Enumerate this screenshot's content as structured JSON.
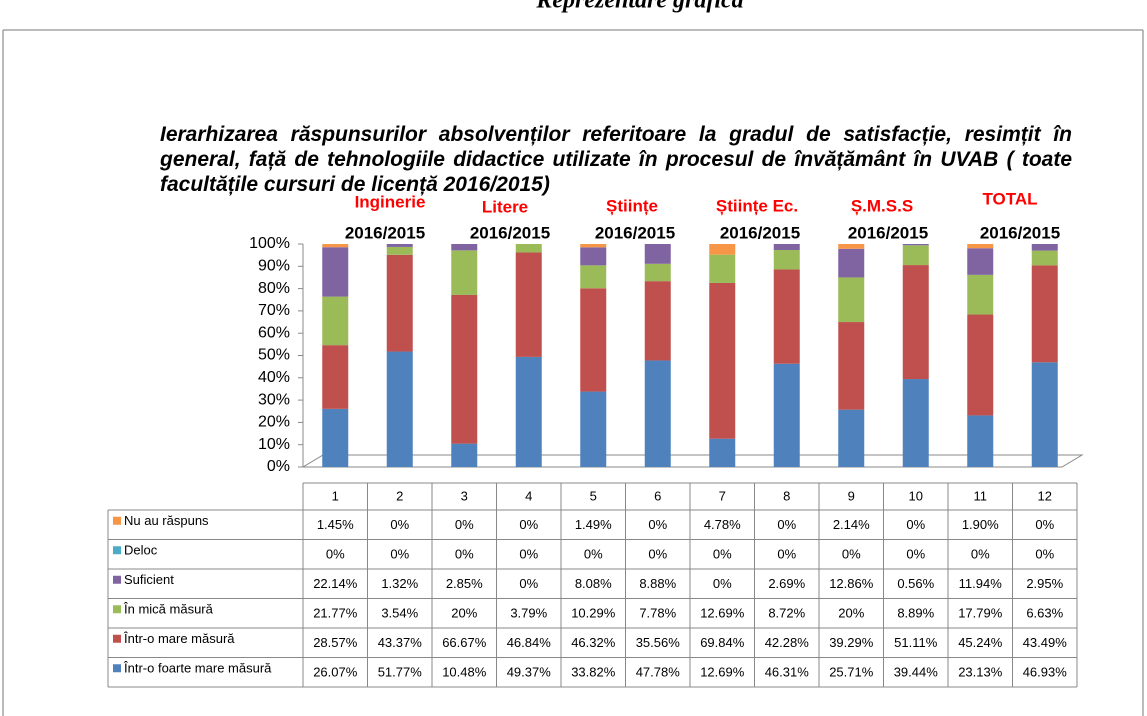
{
  "chart_data": {
    "type": "bar",
    "stacked": true,
    "header": "Reprezentare grafică",
    "title": "Ierarhizarea răspunsurilor  absolvenților referitoare la gradul de satisfacție, resimțit în general, față de tehnologiile didactice utilizate în procesul de învățământ în UVAB ( toate facultățile cursuri de licență 2016/2015)",
    "groups": [
      "Inginerie",
      "Litere",
      "Științe",
      "Științe Ec.",
      "Ș.M.S.S",
      "TOTAL"
    ],
    "group_years": [
      "2016/2015",
      "2016/2015",
      "2016/2015",
      "2016/2015",
      "2016/2015",
      "2016/2015"
    ],
    "categories": [
      "1",
      "2",
      "3",
      "4",
      "5",
      "6",
      "7",
      "8",
      "9",
      "10",
      "11",
      "12"
    ],
    "ylim": [
      0,
      100
    ],
    "yticks": [
      {
        "value": 0,
        "label": "0%"
      },
      {
        "value": 10,
        "label": "10%"
      },
      {
        "value": 20,
        "label": "20%"
      },
      {
        "value": 30,
        "label": "30%"
      },
      {
        "value": 40,
        "label": "40%"
      },
      {
        "value": 50,
        "label": "50%"
      },
      {
        "value": 60,
        "label": "60%"
      },
      {
        "value": 70,
        "label": "70%"
      },
      {
        "value": 80,
        "label": "80%"
      },
      {
        "value": 90,
        "label": "90%"
      },
      {
        "value": 100,
        "label": "100%"
      }
    ],
    "series": [
      {
        "name": "Nu au răspuns",
        "color": "#f79646",
        "values": [
          1.45,
          0,
          0,
          0,
          1.49,
          0,
          4.78,
          0,
          2.14,
          0,
          1.9,
          0
        ],
        "value_labels": [
          "1.45%",
          "0%",
          "0%",
          "0%",
          "1.49%",
          "0%",
          "4.78%",
          "0%",
          "2.14%",
          "0%",
          "1.90%",
          "0%"
        ]
      },
      {
        "name": "Deloc",
        "color": "#4bacc6",
        "values": [
          0,
          0,
          0,
          0,
          0,
          0,
          0,
          0,
          0,
          0,
          0,
          0
        ],
        "value_labels": [
          "0%",
          "0%",
          "0%",
          "0%",
          "0%",
          "0%",
          "0%",
          "0%",
          "0%",
          "0%",
          "0%",
          "0%"
        ]
      },
      {
        "name": "Suficient",
        "color": "#8064a2",
        "values": [
          22.14,
          1.32,
          2.85,
          0,
          8.08,
          8.88,
          0,
          2.69,
          12.86,
          0.56,
          11.94,
          2.95
        ],
        "value_labels": [
          "22.14%",
          "1.32%",
          "2.85%",
          "0%",
          "8.08%",
          "8.88%",
          "0%",
          "2.69%",
          "12.86%",
          "0.56%",
          "11.94%",
          "2.95%"
        ]
      },
      {
        "name": "În mică măsură",
        "color": "#9bbb59",
        "values": [
          21.77,
          3.54,
          20,
          3.79,
          10.29,
          7.78,
          12.69,
          8.72,
          20,
          8.89,
          17.79,
          6.63
        ],
        "value_labels": [
          "21.77%",
          "3.54%",
          "20%",
          "3.79%",
          "10.29%",
          "7.78%",
          "12.69%",
          "8.72%",
          "20%",
          "8.89%",
          "17.79%",
          "6.63%"
        ]
      },
      {
        "name": "Într-o mare măsură",
        "color": "#c0504d",
        "values": [
          28.57,
          43.37,
          66.67,
          46.84,
          46.32,
          35.56,
          69.84,
          42.28,
          39.29,
          51.11,
          45.24,
          43.49
        ],
        "value_labels": [
          "28.57%",
          "43.37%",
          "66.67%",
          "46.84%",
          "46.32%",
          "35.56%",
          "69.84%",
          "42.28%",
          "39.29%",
          "51.11%",
          "45.24%",
          "43.49%"
        ]
      },
      {
        "name": "Într-o foarte mare măsură",
        "color": "#4f81bd",
        "values": [
          26.07,
          51.77,
          10.48,
          49.37,
          33.82,
          47.78,
          12.69,
          46.31,
          25.71,
          39.44,
          23.13,
          46.93
        ],
        "value_labels": [
          "26.07%",
          "51.77%",
          "10.48%",
          "49.37%",
          "33.82%",
          "47.78%",
          "12.69%",
          "46.31%",
          "25.71%",
          "39.44%",
          "23.13%",
          "46.93%"
        ]
      }
    ]
  }
}
